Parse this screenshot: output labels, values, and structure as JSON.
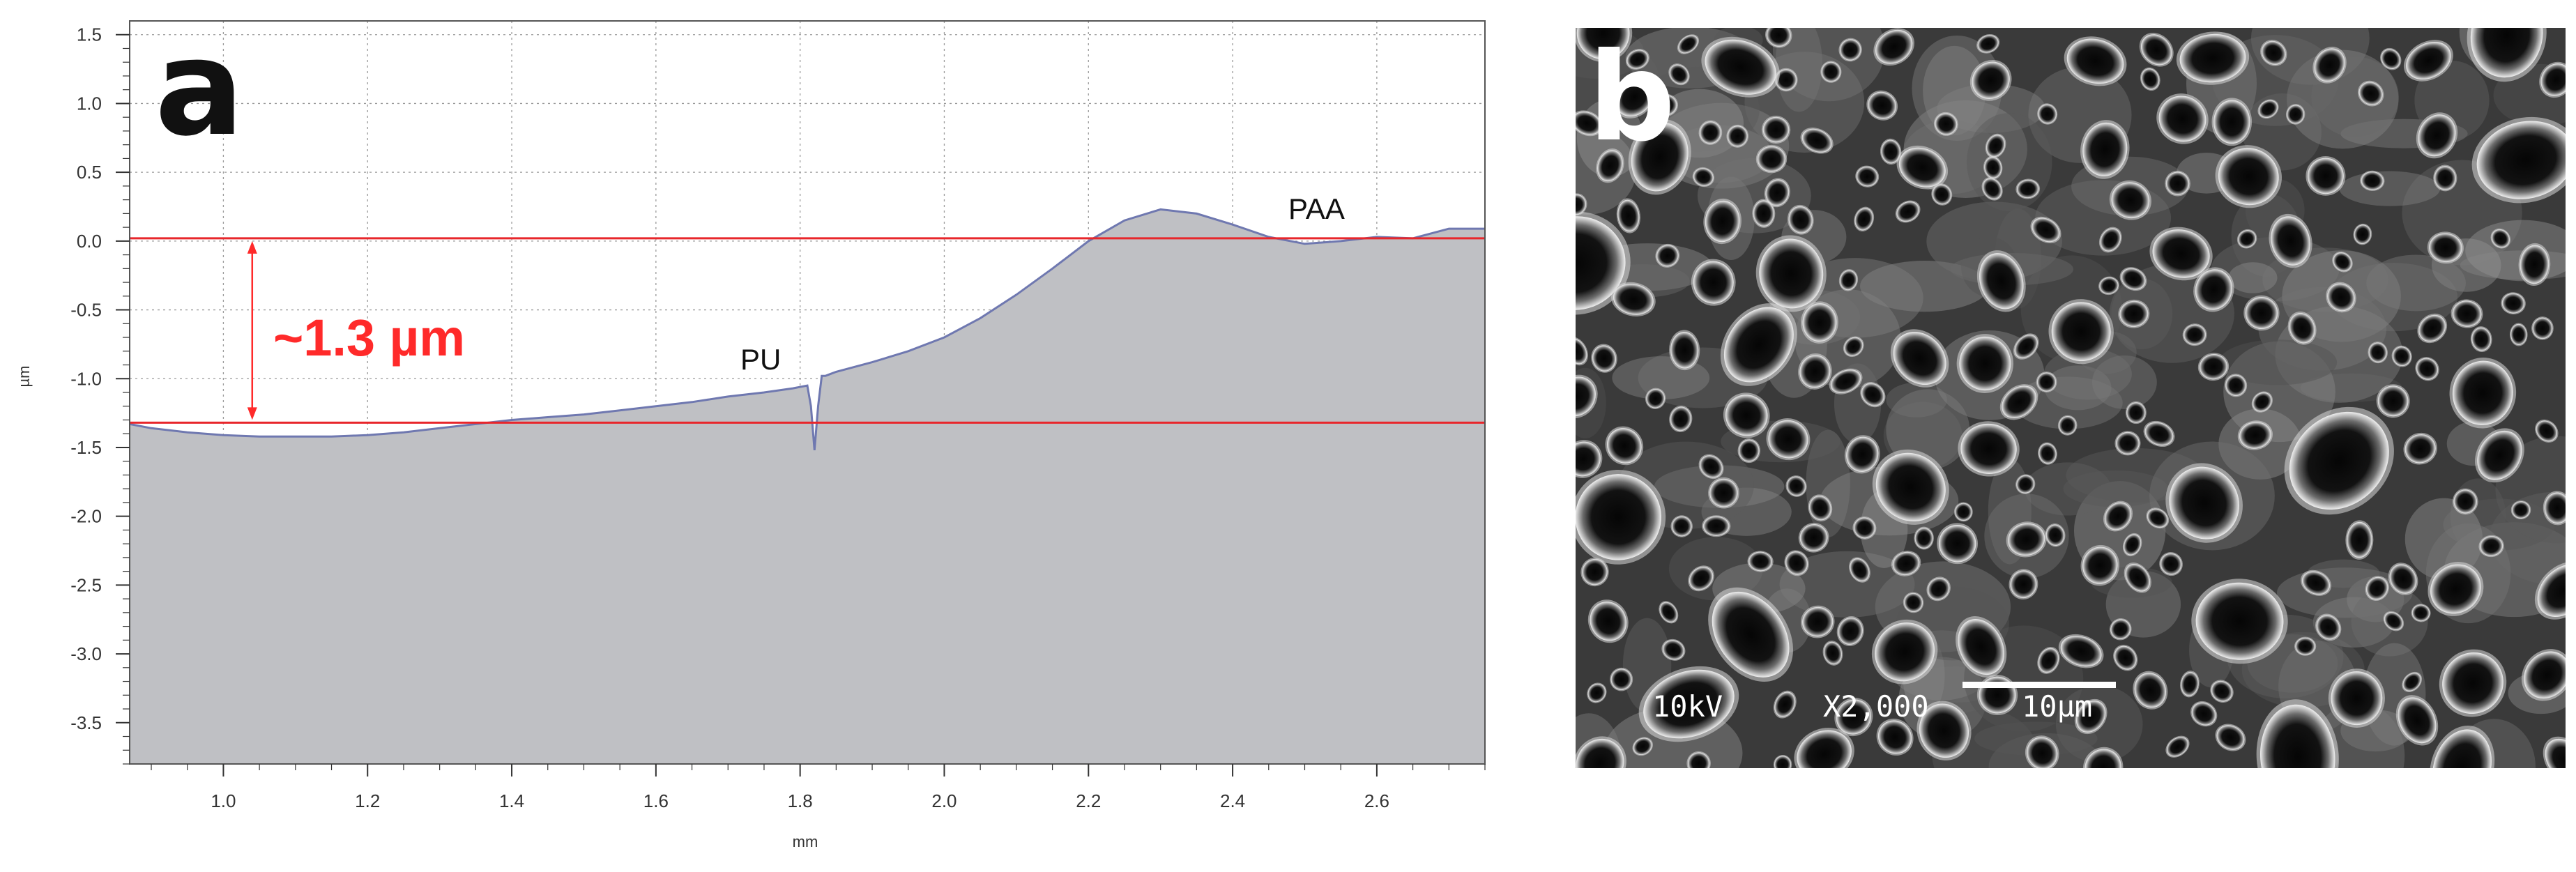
{
  "chart_data": {
    "type": "area",
    "panel_label": "a",
    "xlabel": "mm",
    "ylabel": "µm",
    "xlim": [
      0.87,
      2.75
    ],
    "ylim": [
      -3.8,
      1.6
    ],
    "xticks": [
      {
        "value": 1.0,
        "label": "1.0"
      },
      {
        "value": 1.2,
        "label": "1.2"
      },
      {
        "value": 1.4,
        "label": "1.4"
      },
      {
        "value": 1.6,
        "label": "1.6"
      },
      {
        "value": 1.8,
        "label": "1.8"
      },
      {
        "value": 2.0,
        "label": "2.0"
      },
      {
        "value": 2.2,
        "label": "2.2"
      },
      {
        "value": 2.4,
        "label": "2.4"
      },
      {
        "value": 2.6,
        "label": "2.6"
      }
    ],
    "yticks": [
      {
        "value": 1.5,
        "label": "1.5"
      },
      {
        "value": 1.0,
        "label": "1.0"
      },
      {
        "value": 0.5,
        "label": "0.5"
      },
      {
        "value": 0.0,
        "label": "0.0"
      },
      {
        "value": -0.5,
        "label": "-0.5"
      },
      {
        "value": -1.0,
        "label": "-1.0"
      },
      {
        "value": -1.5,
        "label": "-1.5"
      },
      {
        "value": -2.0,
        "label": "-2.0"
      },
      {
        "value": -2.5,
        "label": "-2.5"
      },
      {
        "value": -3.0,
        "label": "-3.0"
      },
      {
        "value": -3.5,
        "label": "-3.5"
      }
    ],
    "grid": true,
    "series": [
      {
        "x": [
          0.87,
          0.9,
          0.95,
          1.0,
          1.05,
          1.1,
          1.15,
          1.2,
          1.25,
          1.3,
          1.35,
          1.4,
          1.45,
          1.5,
          1.55,
          1.6,
          1.65,
          1.7,
          1.75,
          1.79,
          1.81,
          1.815,
          1.82,
          1.825,
          1.83,
          1.835,
          1.84,
          1.85,
          1.9,
          1.95,
          2.0,
          2.05,
          2.1,
          2.15,
          2.2,
          2.25,
          2.3,
          2.35,
          2.4,
          2.45,
          2.5,
          2.55,
          2.6,
          2.65,
          2.7,
          2.75
        ],
        "y": [
          -1.33,
          -1.36,
          -1.39,
          -1.41,
          -1.42,
          -1.42,
          -1.42,
          -1.41,
          -1.39,
          -1.36,
          -1.33,
          -1.3,
          -1.28,
          -1.26,
          -1.23,
          -1.2,
          -1.17,
          -1.13,
          -1.1,
          -1.07,
          -1.05,
          -1.2,
          -1.52,
          -1.2,
          -0.98,
          -0.98,
          -0.97,
          -0.95,
          -0.88,
          -0.8,
          -0.7,
          -0.56,
          -0.39,
          -0.2,
          0.0,
          0.15,
          0.23,
          0.2,
          0.12,
          0.03,
          -0.02,
          0.0,
          0.03,
          0.02,
          0.09,
          0.09
        ]
      }
    ],
    "reference_lines": [
      0.02,
      -1.32
    ],
    "annotations": [
      {
        "text": "~1.3 µm",
        "color": "#ff2a2a"
      },
      {
        "text": "PU"
      },
      {
        "text": "PAA"
      }
    ],
    "colors": {
      "fill": "#bfc0c4",
      "line": "#6f78b0",
      "reference": "#e8262b",
      "grid": "#9a9a9a",
      "annotation": "#ff2a2a"
    }
  },
  "panel_b": {
    "label": "b",
    "info": {
      "voltage": "10kV",
      "magnification": "X2,000",
      "scale": "10µm"
    }
  }
}
